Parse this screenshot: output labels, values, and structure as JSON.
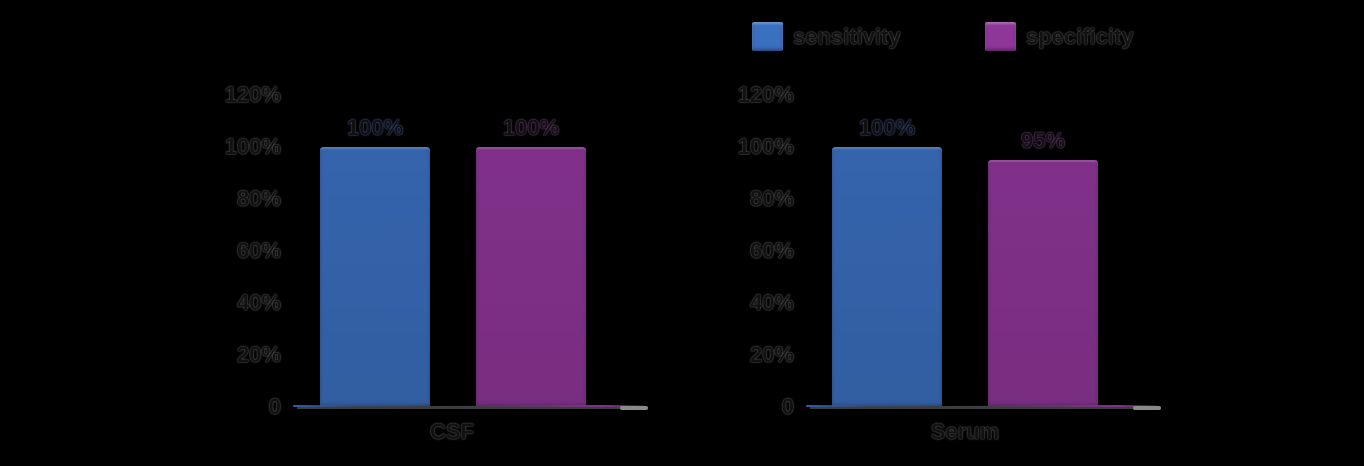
{
  "legend": {
    "items": [
      {
        "label": "sensitivity",
        "color": "#3B6FC0"
      },
      {
        "label": "specificity",
        "color": "#8F3699"
      }
    ]
  },
  "chart_data": {
    "type": "bar",
    "title": "",
    "xlabel": "",
    "ylabel": "",
    "ylim": [
      0,
      120
    ],
    "grid": false,
    "legend_position": "top",
    "yticks": [
      "120%",
      "100%",
      "80%",
      "60%",
      "40%",
      "20%",
      "0"
    ],
    "series_names": [
      "sensitivity",
      "specificity"
    ],
    "colors": {
      "sensitivity": "#3B6FC0",
      "specificity": "#8F3699"
    },
    "charts": [
      {
        "category": "CSF",
        "series": [
          {
            "name": "sensitivity",
            "value": 100,
            "label": "100%"
          },
          {
            "name": "specificity",
            "value": 100,
            "label": "100%"
          }
        ]
      },
      {
        "category": "Serum",
        "series": [
          {
            "name": "sensitivity",
            "value": 100,
            "label": "100%"
          },
          {
            "name": "specificity",
            "value": 95,
            "label": "95%"
          }
        ]
      }
    ]
  }
}
